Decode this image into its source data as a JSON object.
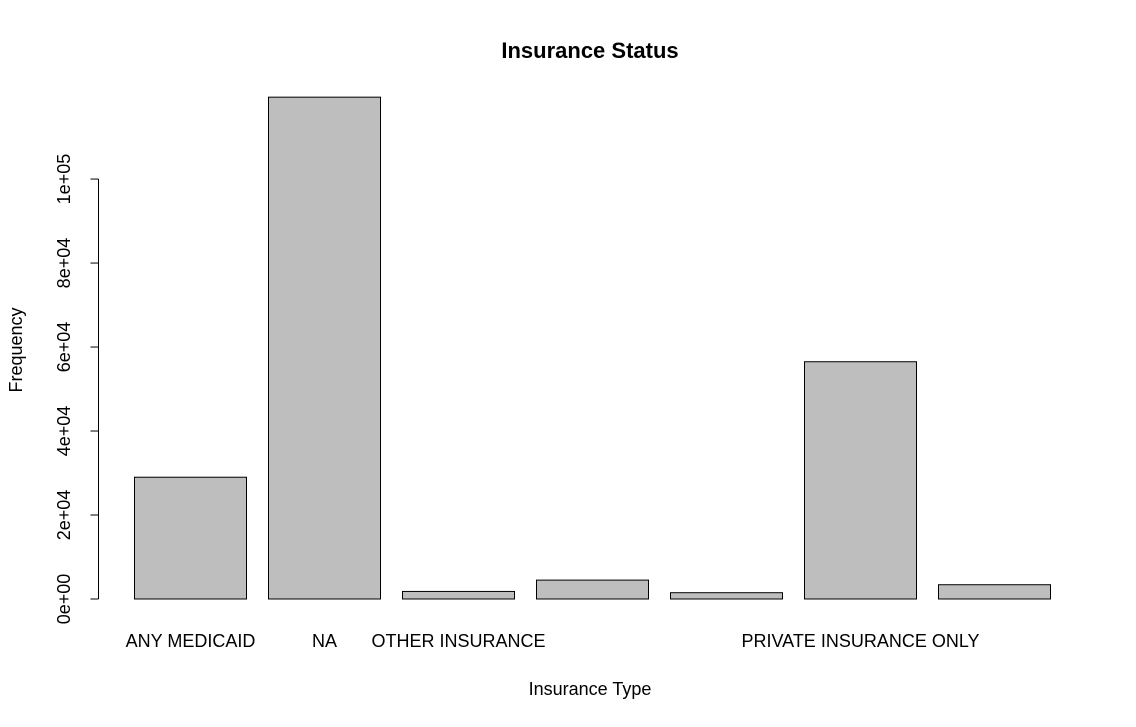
{
  "chart_data": {
    "type": "bar",
    "title": "Insurance Status",
    "xlabel": "Insurance Type",
    "ylabel": "Frequency",
    "categories": [
      "ANY MEDICAID",
      "NA",
      "OTHER INSURANCE",
      "",
      "",
      "PRIVATE INSURANCE ONLY",
      ""
    ],
    "values": [
      29000,
      119500,
      1800,
      4500,
      1500,
      56500,
      3400
    ],
    "yticks": [
      0,
      20000,
      40000,
      60000,
      80000,
      100000
    ],
    "ytick_labels": [
      "0e+00",
      "2e+04",
      "4e+04",
      "6e+04",
      "8e+04",
      "1e+05"
    ],
    "ylim": [
      0,
      120000
    ],
    "bar_color": "#bebebe",
    "grid": false
  }
}
